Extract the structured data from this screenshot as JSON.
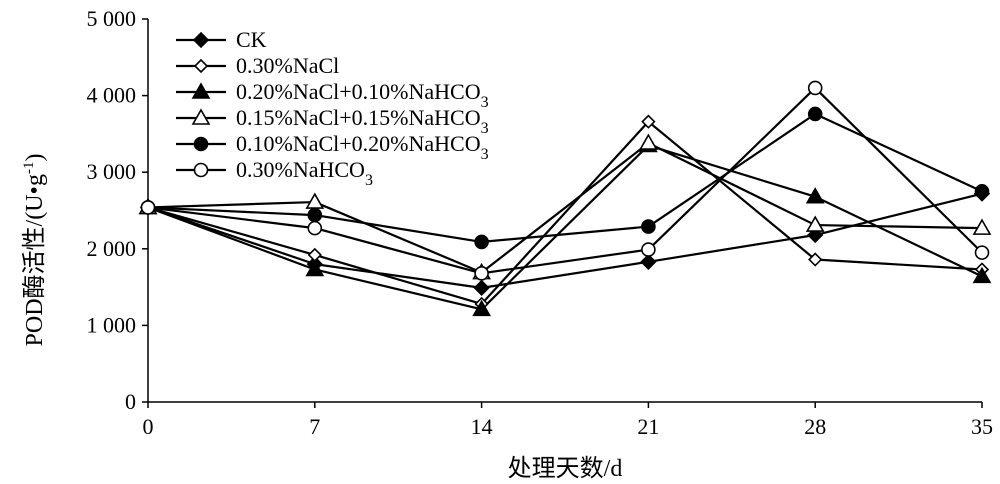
{
  "chart_data": {
    "type": "line",
    "title": "",
    "xlabel": "处理天数/d",
    "ylabel": {
      "main": "POD酶活性/(U•g",
      "sup": "-1",
      "close": ")"
    },
    "x": [
      0,
      7,
      14,
      21,
      28,
      35
    ],
    "x_tick_labels": [
      "0",
      "7",
      "14",
      "21",
      "28",
      "35"
    ],
    "xlim": [
      0,
      35
    ],
    "ylim": [
      0,
      5000
    ],
    "y_ticks": [
      0,
      1000,
      2000,
      3000,
      4000,
      5000
    ],
    "y_tick_labels": [
      "0",
      "1 000",
      "2 000",
      "3 000",
      "4 000",
      "5 000"
    ],
    "grid": false,
    "legend_position": "top-left",
    "line_color": "#000000",
    "series": [
      {
        "name": "CK",
        "legend_parts": [
          {
            "text": "CK",
            "sub": ""
          }
        ],
        "marker": "diamond-filled",
        "values": [
          2540,
          1800,
          1490,
          1830,
          2180,
          2720
        ]
      },
      {
        "name": "0.30%NaCl",
        "legend_parts": [
          {
            "text": "0.30%NaCl",
            "sub": ""
          }
        ],
        "marker": "diamond-open",
        "values": [
          2540,
          1920,
          1280,
          3660,
          1860,
          1730
        ]
      },
      {
        "name": "0.20%NaCl+0.10%NaHCO3",
        "legend_parts": [
          {
            "text": "0.20%NaCl+0.10%NaHCO",
            "sub": "3"
          }
        ],
        "marker": "triangle-filled",
        "values": [
          2540,
          1730,
          1210,
          3350,
          2680,
          1640
        ]
      },
      {
        "name": "0.15%NaCl+0.15%NaHCO3",
        "legend_parts": [
          {
            "text": "0.15%NaCl+0.15%NaHCO",
            "sub": "3"
          }
        ],
        "marker": "triangle-open",
        "values": [
          2540,
          2610,
          1690,
          3380,
          2310,
          2270
        ]
      },
      {
        "name": "0.10%NaCl+0.20%NaHCO3",
        "legend_parts": [
          {
            "text": "0.10%NaCl+0.20%NaHCO",
            "sub": "3"
          }
        ],
        "marker": "circle-filled",
        "values": [
          2540,
          2440,
          2090,
          2290,
          3760,
          2750
        ]
      },
      {
        "name": "0.30%NaHCO3",
        "legend_parts": [
          {
            "text": "0.30%NaHCO",
            "sub": "3"
          }
        ],
        "marker": "circle-open",
        "values": [
          2540,
          2270,
          1680,
          1990,
          4100,
          1950
        ]
      }
    ]
  }
}
